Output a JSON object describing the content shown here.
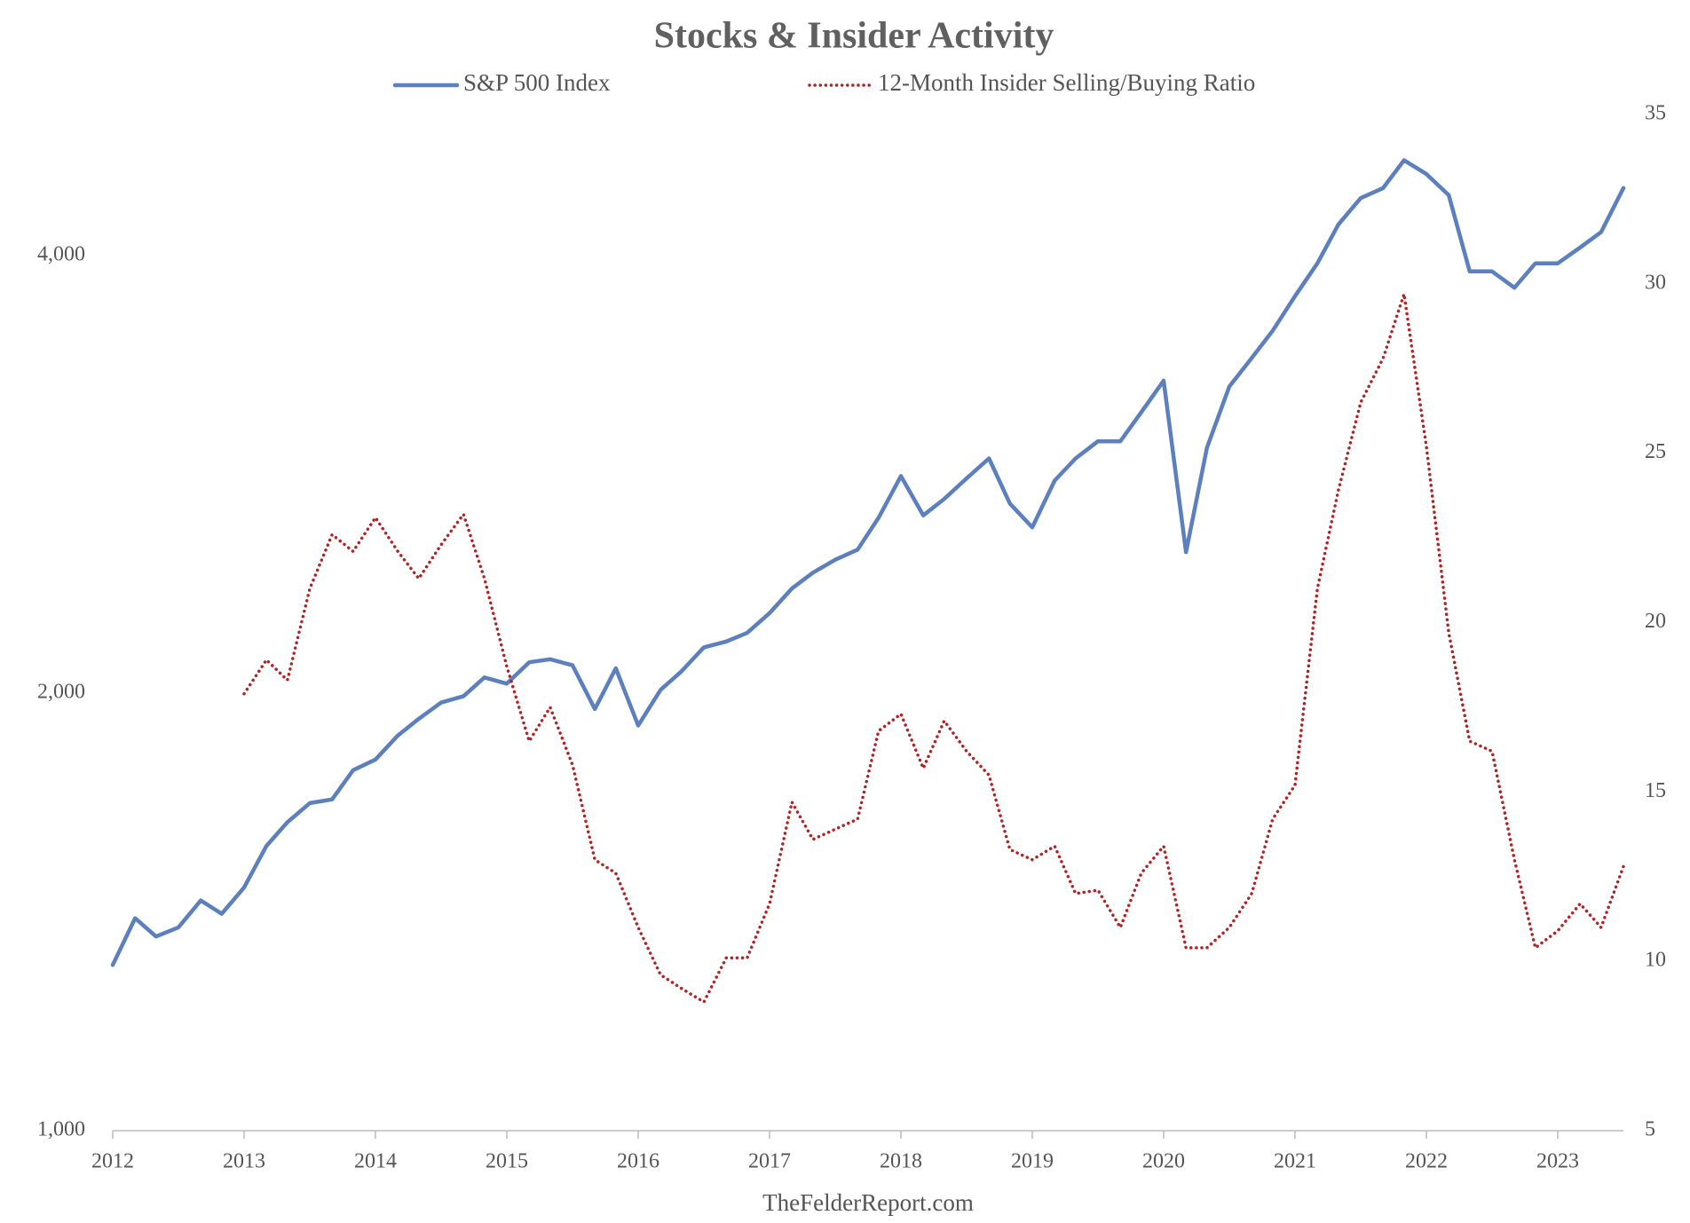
{
  "chart_data": {
    "type": "line",
    "title": "Stocks & Insider Activity",
    "footer": "TheFelderReport.com",
    "legend": "top",
    "yscale": "log",
    "x": [
      2012,
      2012.17,
      2012.33,
      2012.5,
      2012.67,
      2012.83,
      2013,
      2013.17,
      2013.33,
      2013.5,
      2013.67,
      2013.83,
      2014,
      2014.17,
      2014.33,
      2014.5,
      2014.67,
      2014.83,
      2015,
      2015.17,
      2015.33,
      2015.5,
      2015.67,
      2015.83,
      2016,
      2016.17,
      2016.33,
      2016.5,
      2016.67,
      2016.83,
      2017,
      2017.17,
      2017.33,
      2017.5,
      2017.67,
      2017.83,
      2018,
      2018.17,
      2018.33,
      2018.5,
      2018.67,
      2018.83,
      2019,
      2019.17,
      2019.33,
      2019.5,
      2019.67,
      2019.83,
      2020,
      2020.17,
      2020.33,
      2020.5,
      2020.67,
      2020.83,
      2021,
      2021.17,
      2021.33,
      2021.5,
      2021.67,
      2021.83,
      2022,
      2022.17,
      2022.33,
      2022.5,
      2022.67,
      2022.83,
      2023,
      2023.17,
      2023.33,
      2023.5
    ],
    "series": [
      {
        "name": "S&P 500 Index",
        "color": "#5b7fbf",
        "style": "solid",
        "values": [
          1300,
          1400,
          1360,
          1380,
          1440,
          1410,
          1470,
          1570,
          1630,
          1680,
          1690,
          1770,
          1800,
          1870,
          1920,
          1970,
          1990,
          2050,
          2030,
          2100,
          2110,
          2090,
          1950,
          2080,
          1900,
          2010,
          2070,
          2150,
          2170,
          2200,
          2270,
          2360,
          2420,
          2470,
          2510,
          2640,
          2820,
          2650,
          2720,
          2810,
          2900,
          2700,
          2600,
          2800,
          2900,
          2980,
          2980,
          3120,
          3280,
          2500,
          2950,
          3250,
          3400,
          3550,
          3750,
          3950,
          4200,
          4380,
          4450,
          4650,
          4550,
          4400,
          3900,
          3900,
          3800,
          3950,
          3950,
          4050,
          4150,
          4450
        ]
      },
      {
        "name": "12-Month Insider Selling/Buying Ratio",
        "color": "#b22222",
        "style": "dotted",
        "axis": "y2",
        "values": [
          null,
          null,
          null,
          null,
          null,
          null,
          17.9,
          18.9,
          18.3,
          21.0,
          22.6,
          22.1,
          23.1,
          22.1,
          21.3,
          22.3,
          23.2,
          21.3,
          18.7,
          16.5,
          17.5,
          15.8,
          13.0,
          12.6,
          11.0,
          9.6,
          9.2,
          8.8,
          10.1,
          10.1,
          11.7,
          14.7,
          13.6,
          13.9,
          14.2,
          16.8,
          17.3,
          15.7,
          17.1,
          16.2,
          15.5,
          13.3,
          13.0,
          13.4,
          12.0,
          12.1,
          11.0,
          12.6,
          13.4,
          10.4,
          10.4,
          11.0,
          12.0,
          14.2,
          15.2,
          21.0,
          23.9,
          26.5,
          27.8,
          29.7,
          25.2,
          19.7,
          16.5,
          16.2,
          13.0,
          10.4,
          10.9,
          11.7,
          11.0,
          12.8
        ]
      }
    ],
    "xlim": [
      2012,
      2023.5
    ],
    "xticks": [
      2012,
      2013,
      2014,
      2015,
      2016,
      2017,
      2018,
      2019,
      2020,
      2021,
      2022,
      2023
    ],
    "ylim": [
      1000,
      5000
    ],
    "yticks": [
      {
        "value": 1000,
        "label": "1,000"
      },
      {
        "value": 2000,
        "label": "2,000"
      },
      {
        "value": 4000,
        "label": "4,000"
      }
    ],
    "y2lim": [
      5,
      35
    ],
    "y2ticks": [
      5,
      10,
      15,
      20,
      25,
      30,
      35
    ]
  }
}
